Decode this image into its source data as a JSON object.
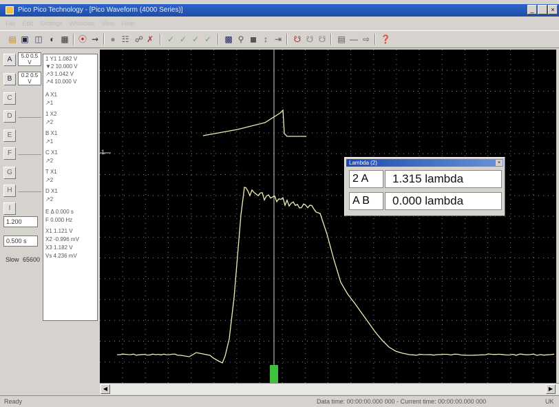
{
  "window": {
    "title": "Pico Pico Technology - [Pico Waveform (4000 Series)]",
    "min_label": "_",
    "restore_label": " ",
    "close_label": "×"
  },
  "menu": [
    "File",
    "Edit",
    "Settings",
    "Windows",
    "View",
    "Help"
  ],
  "left_panel": {
    "range_a": "5.0\n0.5 V",
    "range_b": "0.2\n0.5 V",
    "timebase_value": "1.200",
    "sample_value": "0.500 s",
    "trigger_label": "Slow",
    "trigger_value": "65600"
  },
  "cursor_readout": [
    "1  Y1  1.082 V",
    "▼2  10.000 V",
    "↗3  1.042 V",
    "↗4  10.000 V",
    "A  X1",
    "↗1",
    "1  X2",
    "↗2",
    "B  X1",
    "↗1",
    "C  X1",
    "↗2",
    "T  X1",
    "↗2",
    "D  X1",
    "↗2",
    "E  Δ  0.000 s",
    "    F  0.000 Hz",
    "X1  1.121 V",
    "X2  -0.996 mV",
    "X3  1.182 V",
    "Vs  4.236 mV"
  ],
  "status": {
    "left": "Ready",
    "center": "Data time: 00:00:00.000 000 - Current time: 00:00:00.000 000",
    "right": "UK"
  },
  "measure_popup": {
    "title": "Lambda (2)",
    "rows": [
      {
        "label": "2 A",
        "sub": "↓",
        "value": "1.315 lambda"
      },
      {
        "label": "A B",
        "sub": "↓",
        "value": "0.000 lambda"
      }
    ]
  },
  "colors": {
    "trace": "#f2eeb8",
    "grid_dot": "#8a8a8a",
    "cursor_line": "#d8d8d8",
    "cursor_marker": "#3fc13f",
    "title_bar": "#1e4ea8"
  }
}
